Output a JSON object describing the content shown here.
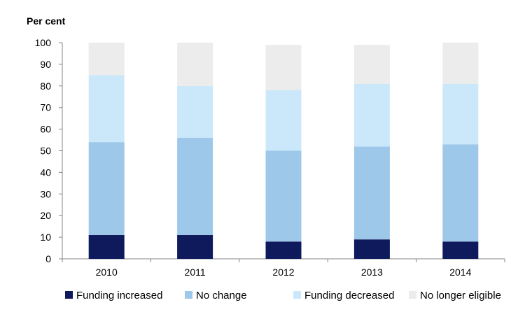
{
  "chart_data": {
    "type": "bar",
    "stacked": true,
    "ylabel": "Per cent",
    "xlabel": "",
    "ylim": [
      0,
      100
    ],
    "yticks": [
      0,
      10,
      20,
      30,
      40,
      50,
      60,
      70,
      80,
      90,
      100
    ],
    "categories": [
      "2010",
      "2011",
      "2012",
      "2013",
      "2014"
    ],
    "series": [
      {
        "name": "Funding increased",
        "color": "#0f1a5c",
        "values": [
          11,
          11,
          8,
          9,
          8
        ]
      },
      {
        "name": "No change",
        "color": "#9ec8ea",
        "values": [
          43,
          45,
          42,
          43,
          45
        ]
      },
      {
        "name": "Funding decreased",
        "color": "#cbe8fa",
        "values": [
          31,
          24,
          28,
          29,
          28
        ]
      },
      {
        "name": "No longer eligible",
        "color": "#ececec",
        "values": [
          15,
          20,
          21,
          18,
          19
        ]
      }
    ],
    "grid": false,
    "legend_position": "bottom"
  }
}
